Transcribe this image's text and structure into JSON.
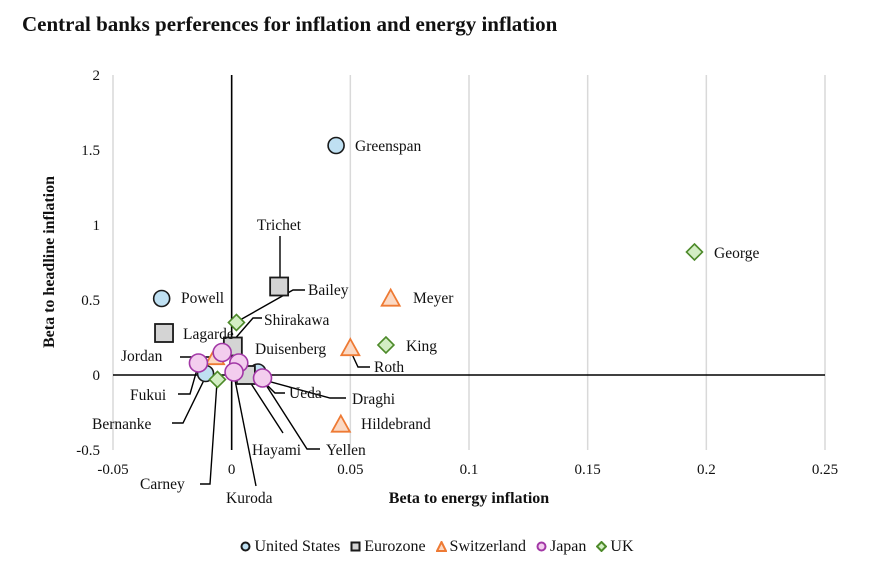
{
  "chart_data": {
    "type": "scatter",
    "title": "Central banks perferences for inflation and energy inflation",
    "xlabel": "Beta to energy inflation",
    "ylabel": "Beta to headline inflation",
    "xlim": [
      -0.05,
      0.25
    ],
    "ylim": [
      -0.5,
      2
    ],
    "xticks": [
      "-0.05",
      "0",
      "0.05",
      "0.1",
      "0.15",
      "0.2",
      "0.25"
    ],
    "yticks": [
      "-0.5",
      "0",
      "0.5",
      "1",
      "1.5",
      "2"
    ],
    "grid": "vertical",
    "legend_position": "bottom",
    "series": [
      {
        "name": "United States",
        "marker": "circle",
        "fill": "#bfe0f2",
        "stroke": "#1a1a1a",
        "points": [
          {
            "label": "Greenspan",
            "x": 0.044,
            "y": 1.53
          },
          {
            "label": "Powell",
            "x": -0.0295,
            "y": 0.51
          },
          {
            "label": "Bernanke",
            "x": -0.011,
            "y": 0.01
          },
          {
            "label": "Yellen",
            "x": 0.011,
            "y": 0.02
          }
        ]
      },
      {
        "name": "Eurozone",
        "marker": "square",
        "fill": "#d4d4d4",
        "stroke": "#1a1a1a",
        "points": [
          {
            "label": "Trichet",
            "x": 0.02,
            "y": 0.59
          },
          {
            "label": "Lagarde",
            "x": -0.0285,
            "y": 0.28
          },
          {
            "label": "Duisenberg",
            "x": 0.0005,
            "y": 0.19
          },
          {
            "label": "Draghi",
            "x": 0.006,
            "y": 0.0
          }
        ]
      },
      {
        "name": "Switzerland",
        "marker": "triangle",
        "fill": "#fbd9c4",
        "stroke": "#ee7a34",
        "points": [
          {
            "label": "Meyer",
            "x": 0.067,
            "y": 0.51
          },
          {
            "label": "Roth",
            "x": 0.05,
            "y": 0.18
          },
          {
            "label": "Hildebrand",
            "x": 0.046,
            "y": -0.33
          },
          {
            "label": "Jordan",
            "x": -0.007,
            "y": 0.12
          }
        ]
      },
      {
        "name": "Japan",
        "marker": "circle",
        "fill": "#f3cdee",
        "stroke": "#a238a6",
        "points": [
          {
            "label": "Shirakawa",
            "x": -0.004,
            "y": 0.15
          },
          {
            "label": "Fukui",
            "x": -0.014,
            "y": 0.08
          },
          {
            "label": "Hayami",
            "x": 0.003,
            "y": 0.08
          },
          {
            "label": "Kuroda",
            "x": 0.001,
            "y": 0.02
          },
          {
            "label": "Ueda",
            "x": 0.013,
            "y": -0.02
          }
        ]
      },
      {
        "name": "UK",
        "marker": "diamond",
        "fill": "#d3eec4",
        "stroke": "#4d8a2a",
        "points": [
          {
            "label": "George",
            "x": 0.195,
            "y": 0.82
          },
          {
            "label": "King",
            "x": 0.065,
            "y": 0.2
          },
          {
            "label": "Bailey",
            "x": 0.002,
            "y": 0.35
          },
          {
            "label": "Carney",
            "x": -0.006,
            "y": -0.03
          }
        ]
      }
    ]
  }
}
